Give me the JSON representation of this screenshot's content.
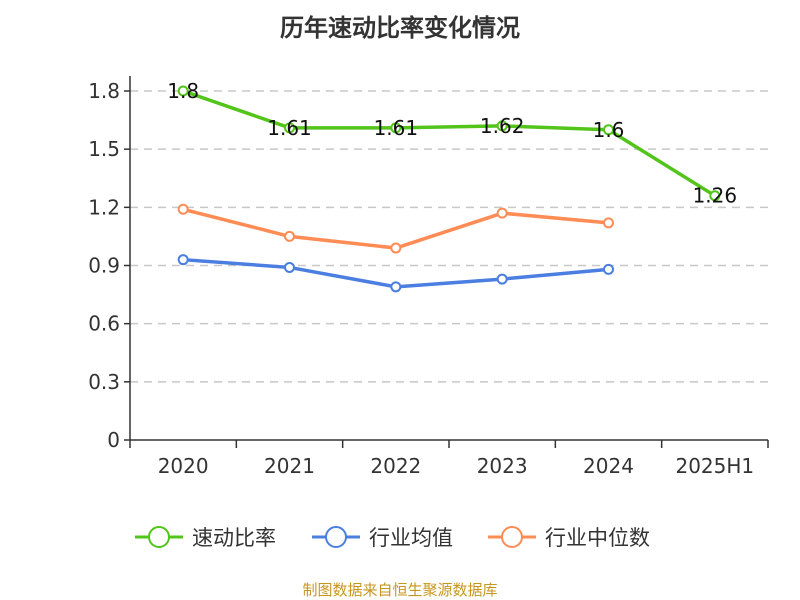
{
  "chart_data": {
    "type": "line",
    "title": "历年速动比率变化情况",
    "categories": [
      "2020",
      "2021",
      "2022",
      "2023",
      "2024",
      "2025H1"
    ],
    "ylim": [
      0,
      1.8
    ],
    "yticks": [
      "0",
      "0.3",
      "0.6",
      "0.9",
      "1.2",
      "1.5",
      "1.8"
    ],
    "grid": true,
    "legend_position": "bottom",
    "series": [
      {
        "name": "速动比率",
        "color": "#52c41a",
        "values": [
          1.8,
          1.61,
          1.61,
          1.62,
          1.6,
          1.26
        ],
        "labels": [
          "1.8",
          "1.61",
          "1.61",
          "1.62",
          "1.6",
          "1.26"
        ]
      },
      {
        "name": "行业均值",
        "color": "#4a7ee0",
        "values": [
          0.93,
          0.89,
          0.79,
          0.83,
          0.88,
          null
        ]
      },
      {
        "name": "行业中位数",
        "color": "#ff8c55",
        "values": [
          1.19,
          1.05,
          0.99,
          1.17,
          1.12,
          null
        ]
      }
    ]
  },
  "source": "制图数据来自恒生聚源数据库"
}
